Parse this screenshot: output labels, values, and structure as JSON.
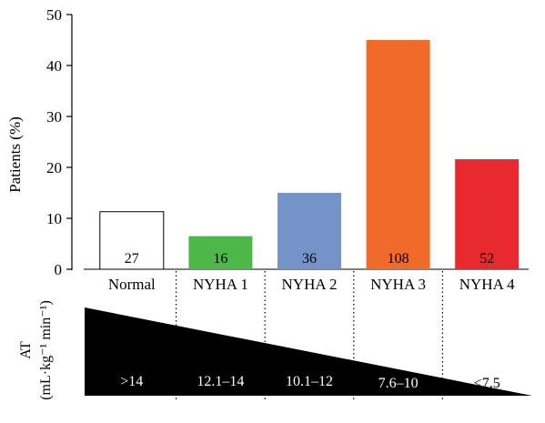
{
  "chart_data": {
    "type": "bar",
    "ylabel": "Patients (%)",
    "ylim": [
      0,
      50
    ],
    "yticks": [
      0,
      10,
      20,
      30,
      40,
      50
    ],
    "categories": [
      "Normal",
      "NYHA 1",
      "NYHA 2",
      "NYHA 3",
      "NYHA 4"
    ],
    "values": [
      11.3,
      6.5,
      15.0,
      45.0,
      21.6
    ],
    "bar_labels": [
      "27",
      "16",
      "36",
      "108",
      "52"
    ],
    "colors": [
      "#ffffff",
      "#4db848",
      "#7393c9",
      "#f26a2a",
      "#e8292e"
    ],
    "at_panel": {
      "label_line1": "AT",
      "label_line2": "(mL·kg⁻¹ min⁻¹)",
      "ranges": [
        ">14",
        "12.1–14",
        "10.1–12",
        "7.6–10",
        "<7.5"
      ]
    }
  }
}
